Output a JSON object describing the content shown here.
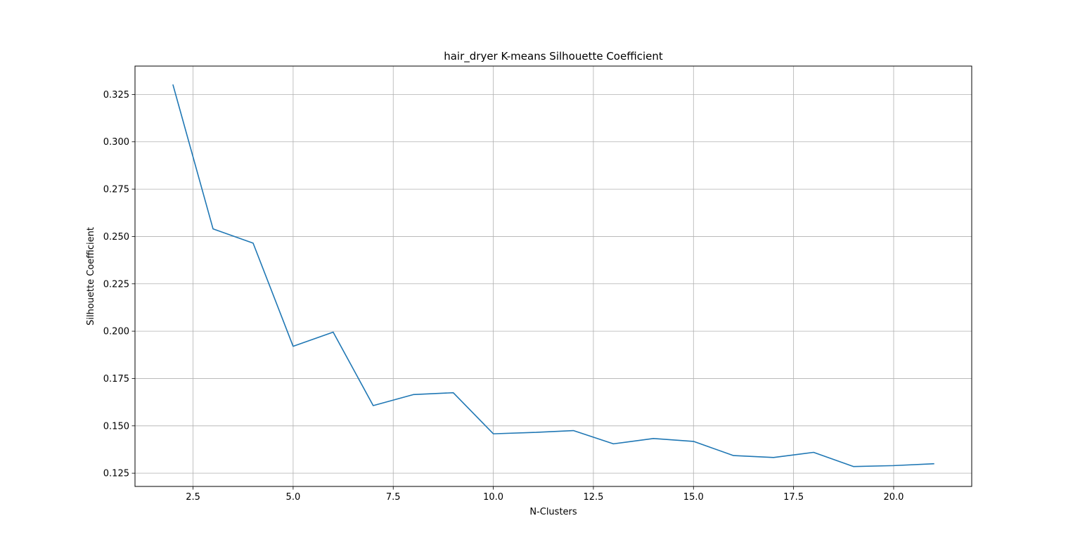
{
  "chart_data": {
    "type": "line",
    "title": "hair_dryer K-means Silhouette Coefficient",
    "xlabel": "N-Clusters",
    "ylabel": "Silhouette Coefficient",
    "xlim": [
      1.05,
      21.95
    ],
    "ylim": [
      0.118,
      0.34
    ],
    "xticks": [
      2.5,
      5.0,
      7.5,
      10.0,
      12.5,
      15.0,
      17.5,
      20.0
    ],
    "xtick_labels": [
      "2.5",
      "5.0",
      "7.5",
      "10.0",
      "12.5",
      "15.0",
      "17.5",
      "20.0"
    ],
    "yticks": [
      0.125,
      0.15,
      0.175,
      0.2,
      0.225,
      0.25,
      0.275,
      0.3,
      0.325
    ],
    "ytick_labels": [
      "0.125",
      "0.150",
      "0.175",
      "0.200",
      "0.225",
      "0.250",
      "0.275",
      "0.300",
      "0.325"
    ],
    "grid": true,
    "line_color": "#1f77b4",
    "series": [
      {
        "x": [
          2,
          3,
          4,
          5,
          6,
          7,
          8,
          9,
          10,
          11,
          12,
          13,
          14,
          15,
          16,
          17,
          18,
          19,
          20,
          21
        ],
        "values": [
          0.33,
          0.254,
          0.2465,
          0.192,
          0.1995,
          0.1607,
          0.1665,
          0.1675,
          0.1458,
          0.1465,
          0.1475,
          0.1405,
          0.1433,
          0.1418,
          0.1343,
          0.1333,
          0.136,
          0.1285,
          0.129,
          0.13
        ]
      }
    ]
  }
}
